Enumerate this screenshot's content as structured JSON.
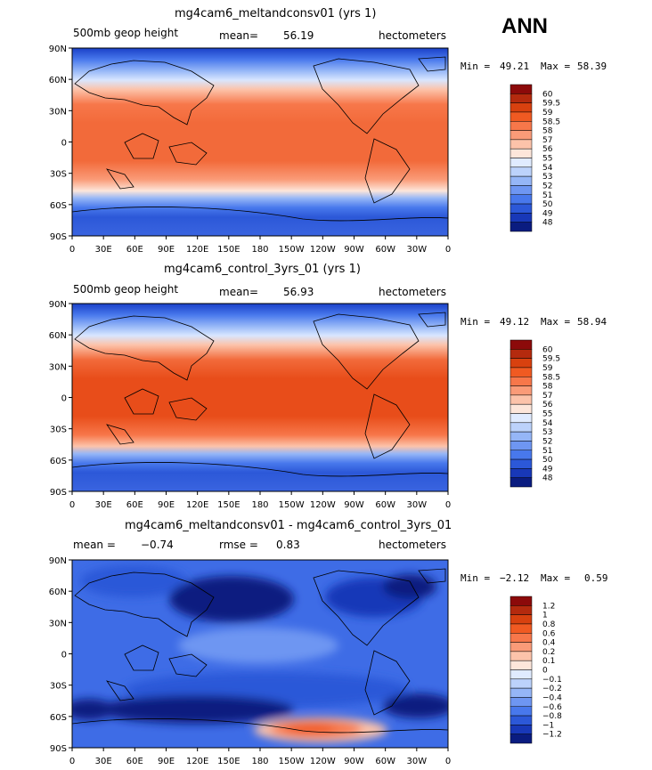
{
  "season": "ANN",
  "panels": [
    {
      "title": "mg4cam6_meltandconsv01 (yrs 1)",
      "left_label": "500mb geop height",
      "mean_label": "mean=",
      "mean_value": "56.19",
      "units": "hectometers",
      "min_label": "Min =",
      "min_value": "49.21",
      "max_label": "Max =",
      "max_value": "58.39",
      "levels": [
        "60",
        "59.5",
        "59",
        "58.5",
        "58",
        "57",
        "56",
        "55",
        "54",
        "53",
        "52",
        "51",
        "50",
        "49",
        "48"
      ],
      "colors": [
        "#8c0a0a",
        "#b42a0e",
        "#d8410f",
        "#f05a22",
        "#f7774a",
        "#fa9b78",
        "#fcc3aa",
        "#fde6da",
        "#e0ebff",
        "#bcd2fb",
        "#95b6f7",
        "#6e96f2",
        "#4878ec",
        "#2c58d8",
        "#1838b8",
        "#0a1c80"
      ]
    },
    {
      "title": "mg4cam6_control_3yrs_01 (yrs 1)",
      "left_label": "500mb geop height",
      "mean_label": "mean=",
      "mean_value": "56.93",
      "units": "hectometers",
      "min_label": "Min =",
      "min_value": "49.12",
      "max_label": "Max =",
      "max_value": "58.94",
      "levels": [
        "60",
        "59.5",
        "59",
        "58.5",
        "58",
        "57",
        "56",
        "55",
        "54",
        "53",
        "52",
        "51",
        "50",
        "49",
        "48"
      ],
      "colors": [
        "#8c0a0a",
        "#b42a0e",
        "#d8410f",
        "#f05a22",
        "#f7774a",
        "#fa9b78",
        "#fcc3aa",
        "#fde6da",
        "#e0ebff",
        "#bcd2fb",
        "#95b6f7",
        "#6e96f2",
        "#4878ec",
        "#2c58d8",
        "#1838b8",
        "#0a1c80"
      ]
    },
    {
      "title": "mg4cam6_meltandconsv01 - mg4cam6_control_3yrs_01",
      "left_label": "mean =",
      "left_value": "−0.74",
      "mid_label": "rmse =",
      "mid_value": "0.83",
      "units": "hectometers",
      "min_label": "Min =",
      "min_value": "−2.12",
      "max_label": "Max =",
      "max_value": "0.59",
      "levels": [
        "1.2",
        "1",
        "0.8",
        "0.6",
        "0.4",
        "0.2",
        "0.1",
        "0",
        "−0.1",
        "−0.2",
        "−0.4",
        "−0.6",
        "−0.8",
        "−1",
        "−1.2"
      ],
      "colors": [
        "#8c0a0a",
        "#b42a0e",
        "#d8410f",
        "#f05a22",
        "#f7774a",
        "#fa9b78",
        "#fcc3aa",
        "#fde6da",
        "#e0ebff",
        "#bcd2fb",
        "#95b6f7",
        "#6e96f2",
        "#4878ec",
        "#2c58d8",
        "#1838b8",
        "#0a1c80"
      ]
    }
  ],
  "lat_ticks": [
    "90N",
    "60N",
    "30N",
    "0",
    "30S",
    "60S",
    "90S"
  ],
  "lon_ticks": [
    "0",
    "30E",
    "60E",
    "90E",
    "120E",
    "150E",
    "180",
    "150W",
    "120W",
    "90W",
    "60W",
    "30W",
    "0"
  ]
}
